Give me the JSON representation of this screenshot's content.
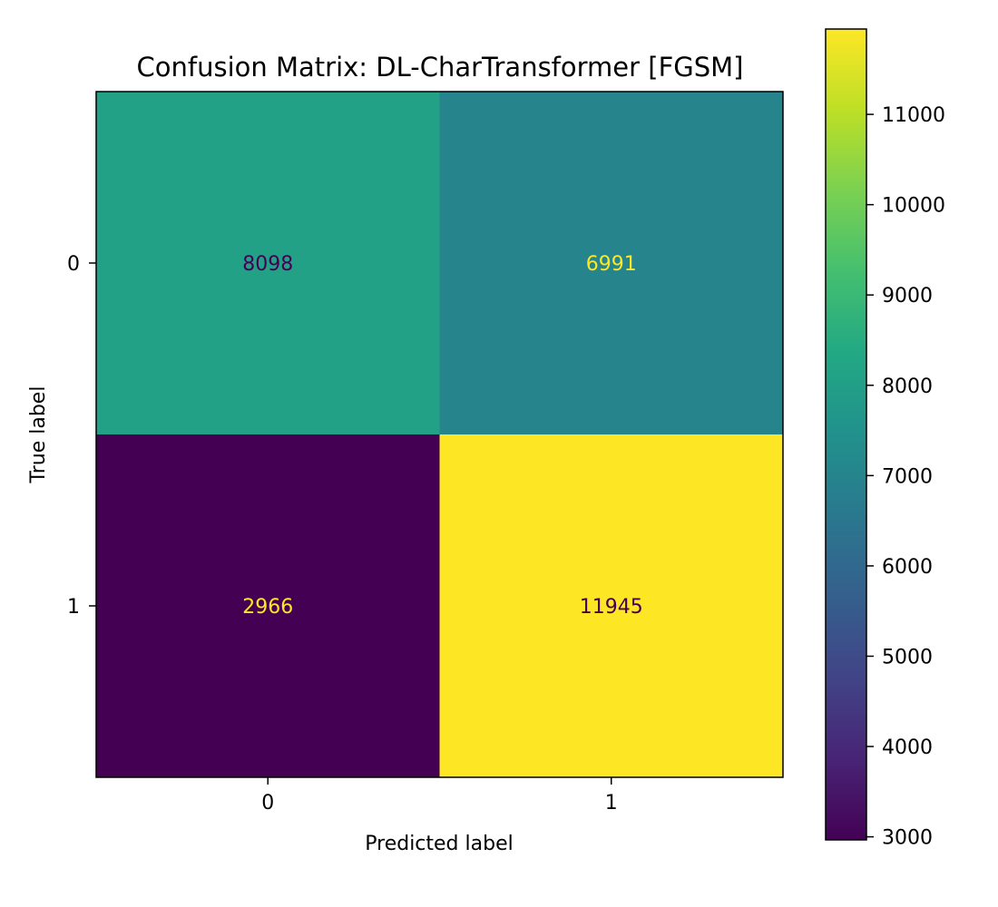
{
  "chart_data": {
    "type": "heatmap",
    "title": "Confusion Matrix: DL-CharTransformer [FGSM]",
    "xlabel": "Predicted label",
    "ylabel": "True label",
    "x_categories": [
      "0",
      "1"
    ],
    "y_categories": [
      "0",
      "1"
    ],
    "values": [
      [
        8098,
        6991
      ],
      [
        2966,
        11945
      ]
    ],
    "colormap": "viridis",
    "colorbar": {
      "min": 2966,
      "max": 11945,
      "ticks": [
        3000,
        4000,
        5000,
        6000,
        7000,
        8000,
        9000,
        10000,
        11000
      ],
      "tick_labels": [
        "3000",
        "4000",
        "5000",
        "6000",
        "7000",
        "8000",
        "9000",
        "10000",
        "11000"
      ]
    },
    "text_colors": {
      "dark": "#440154",
      "light": "#fde725"
    }
  }
}
